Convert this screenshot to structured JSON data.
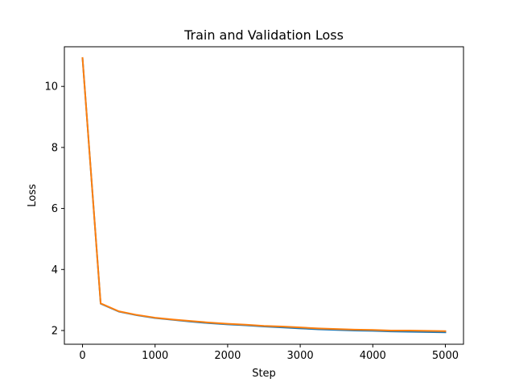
{
  "chart_data": {
    "type": "line",
    "title": "Train and Validation Loss",
    "xlabel": "Step",
    "ylabel": "Loss",
    "xlim": [
      -250,
      5250
    ],
    "ylim": [
      1.55,
      11.3
    ],
    "xticks": [
      0,
      1000,
      2000,
      3000,
      4000,
      5000
    ],
    "yticks": [
      2,
      4,
      6,
      8,
      10
    ],
    "grid": false,
    "x": [
      0,
      250,
      500,
      750,
      1000,
      1250,
      1500,
      1750,
      2000,
      2250,
      2500,
      2750,
      3000,
      3250,
      3500,
      3750,
      4000,
      4250,
      4500,
      4750,
      5000
    ],
    "series": [
      {
        "color": "#1f77b4",
        "values": [
          10.93,
          2.88,
          2.62,
          2.5,
          2.41,
          2.35,
          2.29,
          2.24,
          2.2,
          2.17,
          2.13,
          2.1,
          2.07,
          2.04,
          2.02,
          2.0,
          1.99,
          1.97,
          1.96,
          1.95,
          1.94
        ]
      },
      {
        "color": "#ff7f0e",
        "values": [
          10.93,
          2.89,
          2.63,
          2.51,
          2.42,
          2.36,
          2.31,
          2.26,
          2.22,
          2.19,
          2.15,
          2.13,
          2.1,
          2.07,
          2.05,
          2.03,
          2.02,
          2.0,
          2.0,
          1.99,
          1.98
        ]
      }
    ]
  }
}
